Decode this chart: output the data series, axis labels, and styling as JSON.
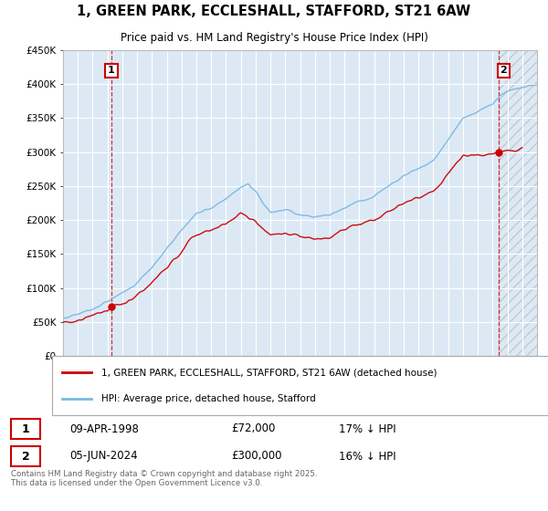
{
  "title_line1": "1, GREEN PARK, ECCLESHALL, STAFFORD, ST21 6AW",
  "title_line2": "Price paid vs. HM Land Registry's House Price Index (HPI)",
  "ylim": [
    0,
    450000
  ],
  "yticks": [
    0,
    50000,
    100000,
    150000,
    200000,
    250000,
    300000,
    350000,
    400000,
    450000
  ],
  "ytick_labels": [
    "£0",
    "£50K",
    "£100K",
    "£150K",
    "£200K",
    "£250K",
    "£300K",
    "£350K",
    "£400K",
    "£450K"
  ],
  "background_color": "#ffffff",
  "plot_bg_color": "#dce9f5",
  "grid_color": "#ffffff",
  "hpi_color": "#7ab8e0",
  "price_color": "#cc0000",
  "marker1_year": 1998.27,
  "marker1_price": 72000,
  "marker2_year": 2024.43,
  "marker2_price": 300000,
  "legend_label1": "1, GREEN PARK, ECCLESHALL, STAFFORD, ST21 6AW (detached house)",
  "legend_label2": "HPI: Average price, detached house, Stafford",
  "annotation1_label": "1",
  "annotation2_label": "2",
  "table_row1": [
    "1",
    "09-APR-1998",
    "£72,000",
    "17% ↓ HPI"
  ],
  "table_row2": [
    "2",
    "05-JUN-2024",
    "£300,000",
    "16% ↓ HPI"
  ],
  "footer": "Contains HM Land Registry data © Crown copyright and database right 2025.\nThis data is licensed under the Open Government Licence v3.0.",
  "xmin": 1995,
  "xmax": 2027
}
